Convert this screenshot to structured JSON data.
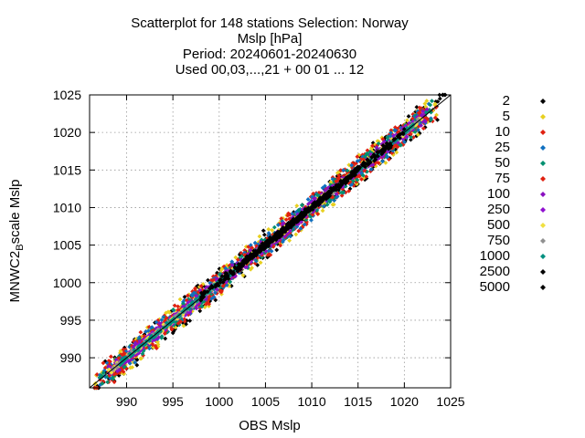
{
  "chart_data": {
    "type": "scatter",
    "title_lines": [
      "Scatterplot for  148 stations Selection: Norway",
      "Mslp [hPa]",
      "Period: 20240601-20240630",
      "Used 00,03,...,21 + 00 01 ... 12"
    ],
    "xlabel": "OBS Mslp",
    "ylabel_main": "MNWC2",
    "ylabel_sub": "B",
    "ylabel_tail": "scale Mslp",
    "xlim": [
      986,
      1025
    ],
    "ylim": [
      986,
      1025
    ],
    "x_ticks": [
      990,
      995,
      1000,
      1005,
      1010,
      1015,
      1020,
      1025
    ],
    "y_ticks": [
      990,
      995,
      1000,
      1005,
      1010,
      1015,
      1020,
      1025
    ],
    "grid": true,
    "diagonal": true,
    "legend_position": "right",
    "series": [
      {
        "name": "2",
        "color": "#000000",
        "spread": 2.0,
        "x_range": [
          986.5,
          1024.5
        ]
      },
      {
        "name": "5",
        "color": "#e8d020",
        "spread": 1.9,
        "x_range": [
          986.5,
          1023.5
        ]
      },
      {
        "name": "10",
        "color": "#e02010",
        "spread": 1.8,
        "x_range": [
          986.5,
          1023.5
        ]
      },
      {
        "name": "25",
        "color": "#1070c0",
        "spread": 1.5,
        "x_range": [
          987,
          1023
        ]
      },
      {
        "name": "50",
        "color": "#009070",
        "spread": 1.25,
        "x_range": [
          987,
          1023
        ]
      },
      {
        "name": "75",
        "color": "#e02010",
        "spread": 1.05,
        "x_range": [
          988,
          1022.5
        ]
      },
      {
        "name": "100",
        "color": "#8a10c0",
        "spread": 0.9,
        "x_range": [
          988,
          1022.5
        ]
      },
      {
        "name": "250",
        "color": "#9010d0",
        "spread": 0.6,
        "x_range": [
          988,
          1022
        ]
      },
      {
        "name": "500",
        "color": "#f0e040",
        "spread": 0.35,
        "x_range": [
          988,
          1022
        ]
      },
      {
        "name": "750",
        "color": "#909090",
        "spread": 0.22,
        "x_range": [
          988.5,
          1021.5
        ]
      },
      {
        "name": "1000",
        "color": "#009080",
        "spread": 0.15,
        "x_range": [
          989,
          1021
        ]
      },
      {
        "name": "2500",
        "color": "#000000",
        "spread": 0.45,
        "x_range": [
          998,
          1020
        ]
      },
      {
        "name": "5000",
        "color": "#000000",
        "spread": 0.3,
        "x_range": [
          1002,
          1015
        ]
      }
    ]
  }
}
